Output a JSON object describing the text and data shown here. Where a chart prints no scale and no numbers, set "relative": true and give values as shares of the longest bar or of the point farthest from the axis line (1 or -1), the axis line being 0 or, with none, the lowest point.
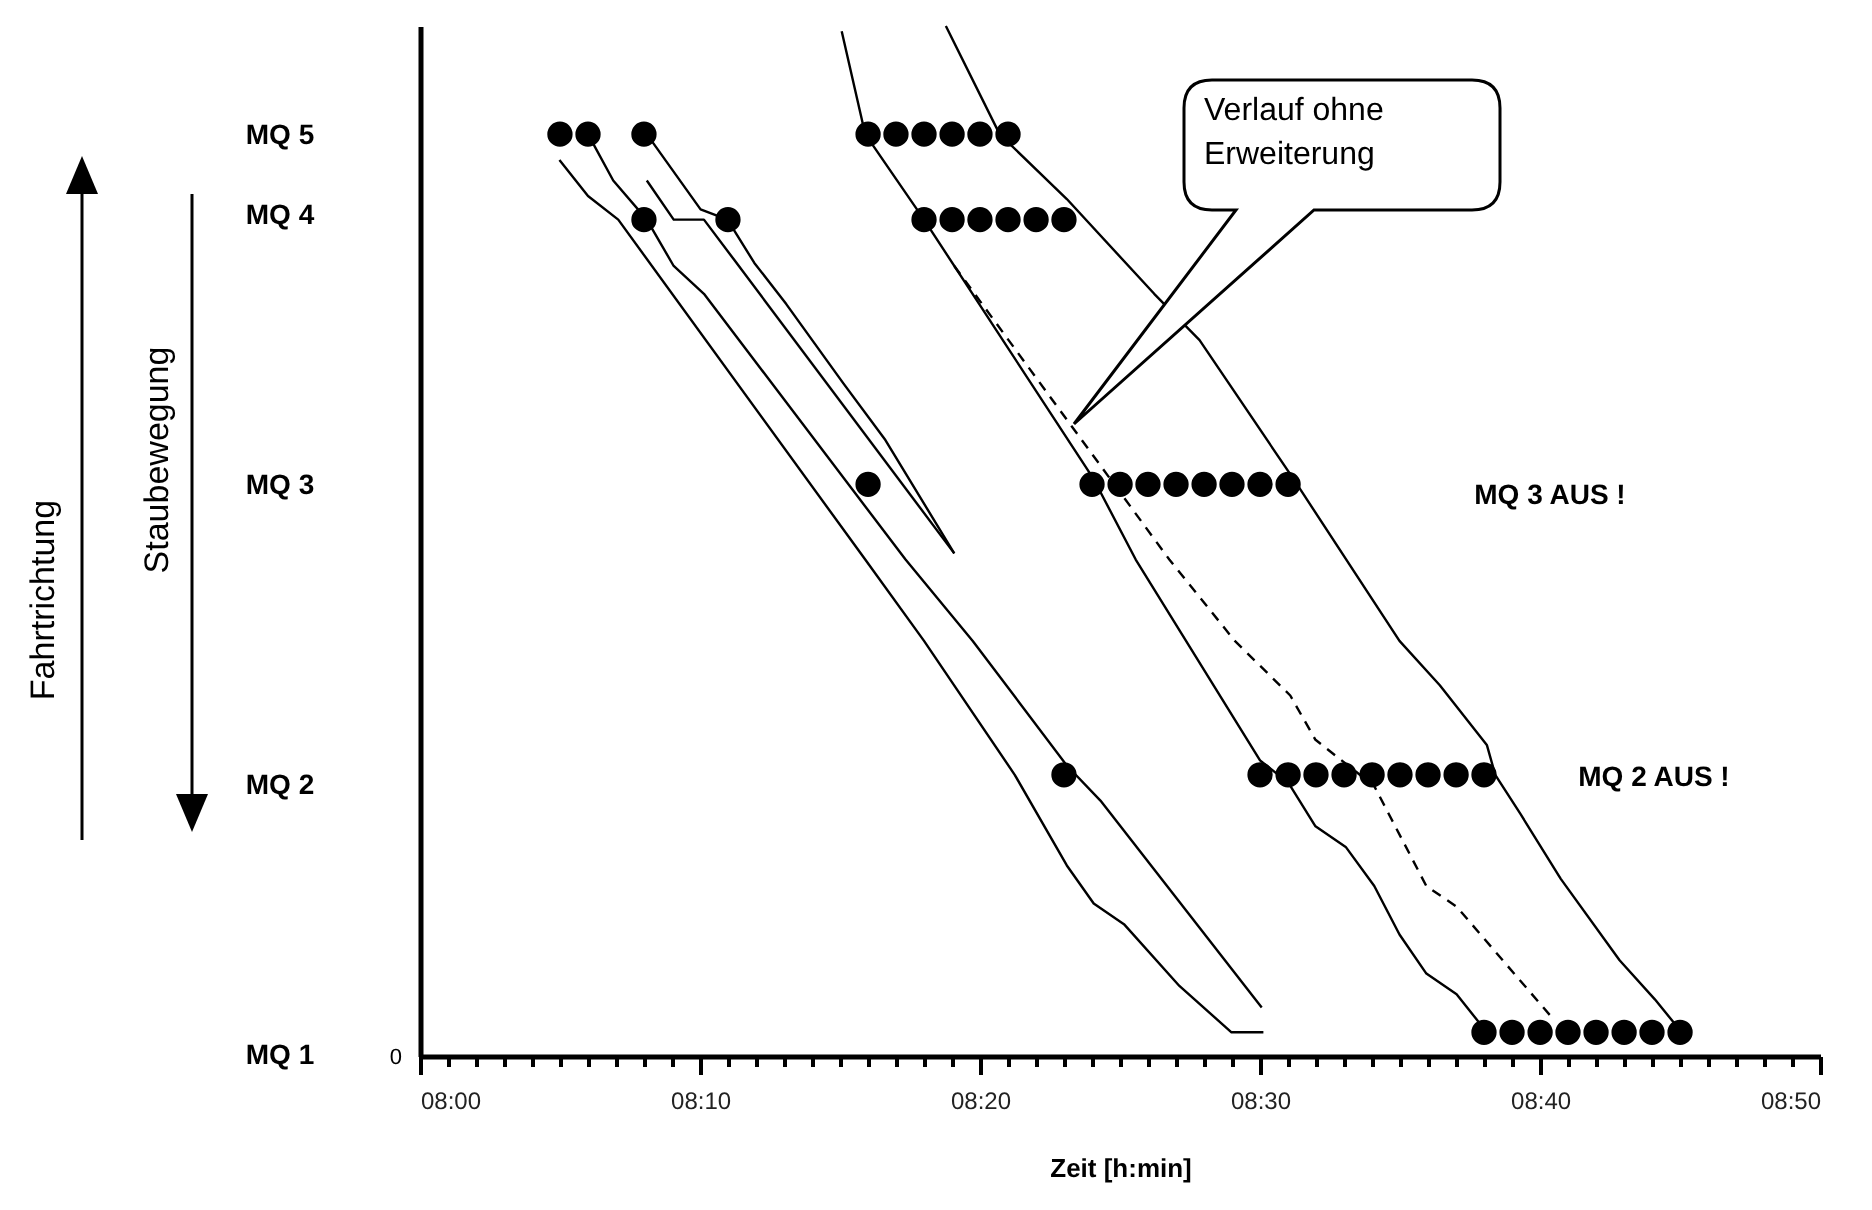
{
  "chart_data": {
    "type": "line",
    "xlabel": "Zeit [h:min]",
    "relative": true,
    "xlim": [
      8,
      8.8333
    ],
    "xticks": [
      {
        "value": 8,
        "label": "08:00"
      },
      {
        "value": 8.0167,
        "label": null
      },
      {
        "value": 8.0333,
        "label": null
      },
      {
        "value": 8.05,
        "label": null
      },
      {
        "value": 8.0667,
        "label": null
      },
      {
        "value": 8.0833,
        "label": null
      },
      {
        "value": 8.1,
        "label": null
      },
      {
        "value": 8.1167,
        "label": null
      },
      {
        "value": 8.1333,
        "label": null
      },
      {
        "value": 8.15,
        "label": null
      },
      {
        "value": 8.1667,
        "label": "08:10"
      },
      {
        "value": 8.1833,
        "label": null
      },
      {
        "value": 8.2,
        "label": null
      },
      {
        "value": 8.2167,
        "label": null
      },
      {
        "value": 8.2333,
        "label": null
      },
      {
        "value": 8.25,
        "label": null
      },
      {
        "value": 8.2667,
        "label": null
      },
      {
        "value": 8.2833,
        "label": null
      },
      {
        "value": 8.3,
        "label": null
      },
      {
        "value": 8.3167,
        "label": null
      },
      {
        "value": 8.3333,
        "label": "08:20"
      },
      {
        "value": 8.35,
        "label": null
      },
      {
        "value": 8.3667,
        "label": null
      },
      {
        "value": 8.3833,
        "label": null
      },
      {
        "value": 8.4,
        "label": null
      },
      {
        "value": 8.4167,
        "label": null
      },
      {
        "value": 8.4333,
        "label": null
      },
      {
        "value": 8.45,
        "label": null
      },
      {
        "value": 8.4667,
        "label": null
      },
      {
        "value": 8.4833,
        "label": null
      },
      {
        "value": 8.5,
        "label": "08:30"
      },
      {
        "value": 8.5167,
        "label": null
      },
      {
        "value": 8.5333,
        "label": null
      },
      {
        "value": 8.55,
        "label": null
      },
      {
        "value": 8.5667,
        "label": null
      },
      {
        "value": 8.5833,
        "label": null
      },
      {
        "value": 8.6,
        "label": null
      },
      {
        "value": 8.6167,
        "label": null
      },
      {
        "value": 8.6333,
        "label": null
      },
      {
        "value": 8.65,
        "label": null
      },
      {
        "value": 8.6667,
        "label": "08:40"
      },
      {
        "value": 8.6833,
        "label": null
      },
      {
        "value": 8.7,
        "label": null
      },
      {
        "value": 8.7167,
        "label": null
      },
      {
        "value": 8.7333,
        "label": null
      },
      {
        "value": 8.75,
        "label": null
      },
      {
        "value": 8.7667,
        "label": null
      },
      {
        "value": 8.7833,
        "label": null
      },
      {
        "value": 8.8,
        "label": null
      },
      {
        "value": 8.8167,
        "label": null
      },
      {
        "value": 8.8333,
        "label": "08:50"
      }
    ],
    "annotations": [
      "Staubewegung",
      "Verlauf ohne Erweiterung",
      "MQ 3 AUS !",
      "MQ 2 AUS !",
      "0",
      "Fahrtrichtung",
      "MQ 5",
      "MQ 4",
      "MQ 3",
      "MQ 2",
      "MQ 1"
    ],
    "series": [
      {
        "color": "#000000",
        "x": [
          8.083,
          8.1,
          8.118,
          8.265,
          8.3,
          8.354,
          8.385,
          8.401,
          8.419,
          8.452,
          8.483,
          8.502
        ],
        "values": [
          0.87,
          0.835,
          0.812,
          0.482,
          0.403,
          0.273,
          0.185,
          0.148,
          0.128,
          0.068,
          0.023,
          0.023
        ]
      },
      {
        "color": "#000000",
        "x": [
          8.1,
          8.115,
          8.135,
          8.151,
          8.169,
          8.289,
          8.329,
          8.385,
          8.405,
          8.501
        ],
        "values": [
          0.895,
          0.85,
          0.812,
          0.767,
          0.74,
          0.482,
          0.403,
          0.282,
          0.248,
          0.047
        ]
      },
      {
        "color": "#000000",
        "x": [
          8.135,
          8.167,
          8.183,
          8.199,
          8.218,
          8.252,
          8.277,
          8.318
        ],
        "values": [
          0.895,
          0.822,
          0.812,
          0.77,
          0.73,
          0.653,
          0.598,
          0.488
        ]
      },
      {
        "color": "#000000",
        "x": [
          8.135,
          8.151,
          8.169,
          8.187,
          8.318
        ],
        "values": [
          0.85,
          0.812,
          0.812,
          0.773,
          0.488
        ]
      },
      {
        "color": "#000000",
        "x": [
          8.251,
          8.265,
          8.3,
          8.401,
          8.426,
          8.5,
          8.517,
          8.533,
          8.551,
          8.568,
          8.583,
          8.599,
          8.617,
          8.635
        ],
        "values": [
          0.995,
          0.895,
          0.812,
          0.56,
          0.482,
          0.287,
          0.265,
          0.223,
          0.203,
          0.165,
          0.118,
          0.08,
          0.06,
          0.023
        ]
      },
      {
        "color": "#000000",
        "x": [
          8.313,
          8.345,
          8.385,
          8.437,
          8.464,
          8.52,
          8.583,
          8.607,
          8.635,
          8.64,
          8.655,
          8.679,
          8.714,
          8.735,
          8.751
        ],
        "values": [
          1,
          0.895,
          0.832,
          0.74,
          0.695,
          0.56,
          0.403,
          0.36,
          0.302,
          0.273,
          0.235,
          0.172,
          0.093,
          0.055,
          0.023
        ]
      },
      {
        "color": "#000000",
        "line_style": "dashed",
        "x": [
          8.318,
          8.446,
          8.485,
          8.518,
          8.533,
          8.568,
          8.599,
          8.617,
          8.675
        ],
        "values": [
          0.767,
          0.482,
          0.403,
          0.35,
          0.307,
          0.262,
          0.165,
          0.145,
          0.035
        ]
      },
      {
        "type": "scatter",
        "marker": "circle",
        "color": "#000000",
        "x": [
          8.0833,
          8.1,
          8.1333,
          8.2667,
          8.2833,
          8.3,
          8.3167,
          8.3333,
          8.35,
          8.1333,
          8.1833,
          8.3,
          8.3167,
          8.3333,
          8.35,
          8.3667,
          8.3833,
          8.2667,
          8.4,
          8.4167,
          8.4333,
          8.45,
          8.4667,
          8.4833,
          8.5,
          8.5167,
          8.3833,
          8.5,
          8.5167,
          8.5333,
          8.55,
          8.5667,
          8.5833,
          8.6,
          8.6167,
          8.6333,
          8.6333,
          8.65,
          8.6667,
          8.6833,
          8.7,
          8.7167,
          8.7333,
          8.75
        ],
        "values": [
          0.895,
          0.895,
          0.895,
          0.895,
          0.895,
          0.895,
          0.895,
          0.895,
          0.895,
          0.812,
          0.812,
          0.812,
          0.812,
          0.812,
          0.812,
          0.812,
          0.812,
          0.555,
          0.555,
          0.555,
          0.555,
          0.555,
          0.555,
          0.555,
          0.555,
          0.555,
          0.273,
          0.273,
          0.273,
          0.273,
          0.273,
          0.273,
          0.273,
          0.273,
          0.273,
          0.273,
          0.023,
          0.023,
          0.023,
          0.023,
          0.023,
          0.023,
          0.023,
          0.023
        ]
      }
    ]
  }
}
